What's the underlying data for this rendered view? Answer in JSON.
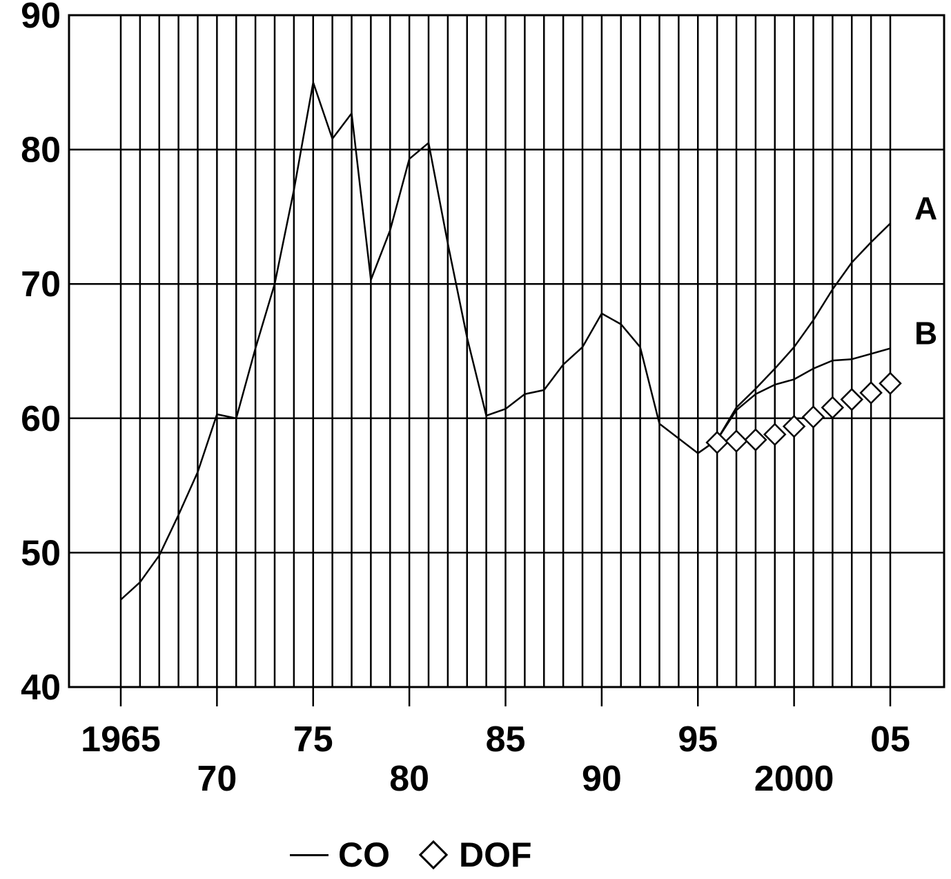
{
  "chart_data": {
    "type": "line",
    "title": "",
    "xlabel": "",
    "ylabel": "",
    "xlim": [
      1965,
      2005
    ],
    "ylim": [
      40,
      90
    ],
    "grid": true,
    "y_ticks": [
      40,
      50,
      60,
      70,
      80,
      90
    ],
    "y_tick_labels": [
      "40",
      "50",
      "60",
      "70",
      "80",
      "90"
    ],
    "x_ticks": [
      1965,
      1970,
      1975,
      1980,
      1985,
      1990,
      1995,
      2000,
      2005
    ],
    "x_tick_labels": [
      "1965",
      "70",
      "75",
      "80",
      "85",
      "90",
      "95",
      "2000",
      "05"
    ],
    "series": [
      {
        "name": "CO",
        "marker": "line",
        "x": [
          1965,
          1966,
          1967,
          1968,
          1969,
          1970,
          1971,
          1972,
          1973,
          1974,
          1975,
          1976,
          1977,
          1978,
          1979,
          1980,
          1981,
          1982,
          1983,
          1984,
          1985,
          1986,
          1987,
          1988,
          1989,
          1990,
          1991,
          1992,
          1993,
          1994,
          1995
        ],
        "values": [
          46.5,
          47.8,
          49.8,
          52.8,
          56.0,
          60.3,
          60.0,
          65.2,
          70.0,
          77.0,
          85.0,
          80.8,
          82.7,
          70.3,
          74.0,
          79.3,
          80.5,
          73.0,
          66.0,
          60.2,
          60.7,
          61.8,
          62.1,
          64.0,
          65.3,
          67.8,
          67.0,
          65.3,
          59.6,
          58.5,
          57.4
        ]
      },
      {
        "name": "A",
        "marker": "line",
        "x": [
          1995,
          1996,
          1997,
          1998,
          1999,
          2000,
          2001,
          2002,
          2003,
          2004,
          2005
        ],
        "values": [
          57.4,
          58.4,
          60.8,
          62.2,
          63.7,
          65.3,
          67.3,
          69.6,
          71.6,
          73.1,
          74.5
        ]
      },
      {
        "name": "B",
        "marker": "line",
        "x": [
          1995,
          1996,
          1997,
          1998,
          1999,
          2000,
          2001,
          2002,
          2003,
          2004,
          2005
        ],
        "values": [
          57.4,
          58.4,
          60.6,
          61.8,
          62.5,
          62.9,
          63.7,
          64.3,
          64.4,
          64.8,
          65.2
        ]
      },
      {
        "name": "DOF",
        "marker": "diamond",
        "x": [
          1996,
          1997,
          1998,
          1999,
          2000,
          2001,
          2002,
          2003,
          2004,
          2005
        ],
        "values": [
          58.2,
          58.3,
          58.4,
          58.8,
          59.4,
          60.1,
          60.8,
          61.4,
          61.9,
          62.6
        ]
      }
    ],
    "series_labels": [
      "A",
      "B"
    ],
    "legend": {
      "placement": "bottom-center",
      "entries": [
        {
          "label": "CO",
          "symbol": "line"
        },
        {
          "label": "DOF",
          "symbol": "diamond"
        }
      ]
    }
  }
}
